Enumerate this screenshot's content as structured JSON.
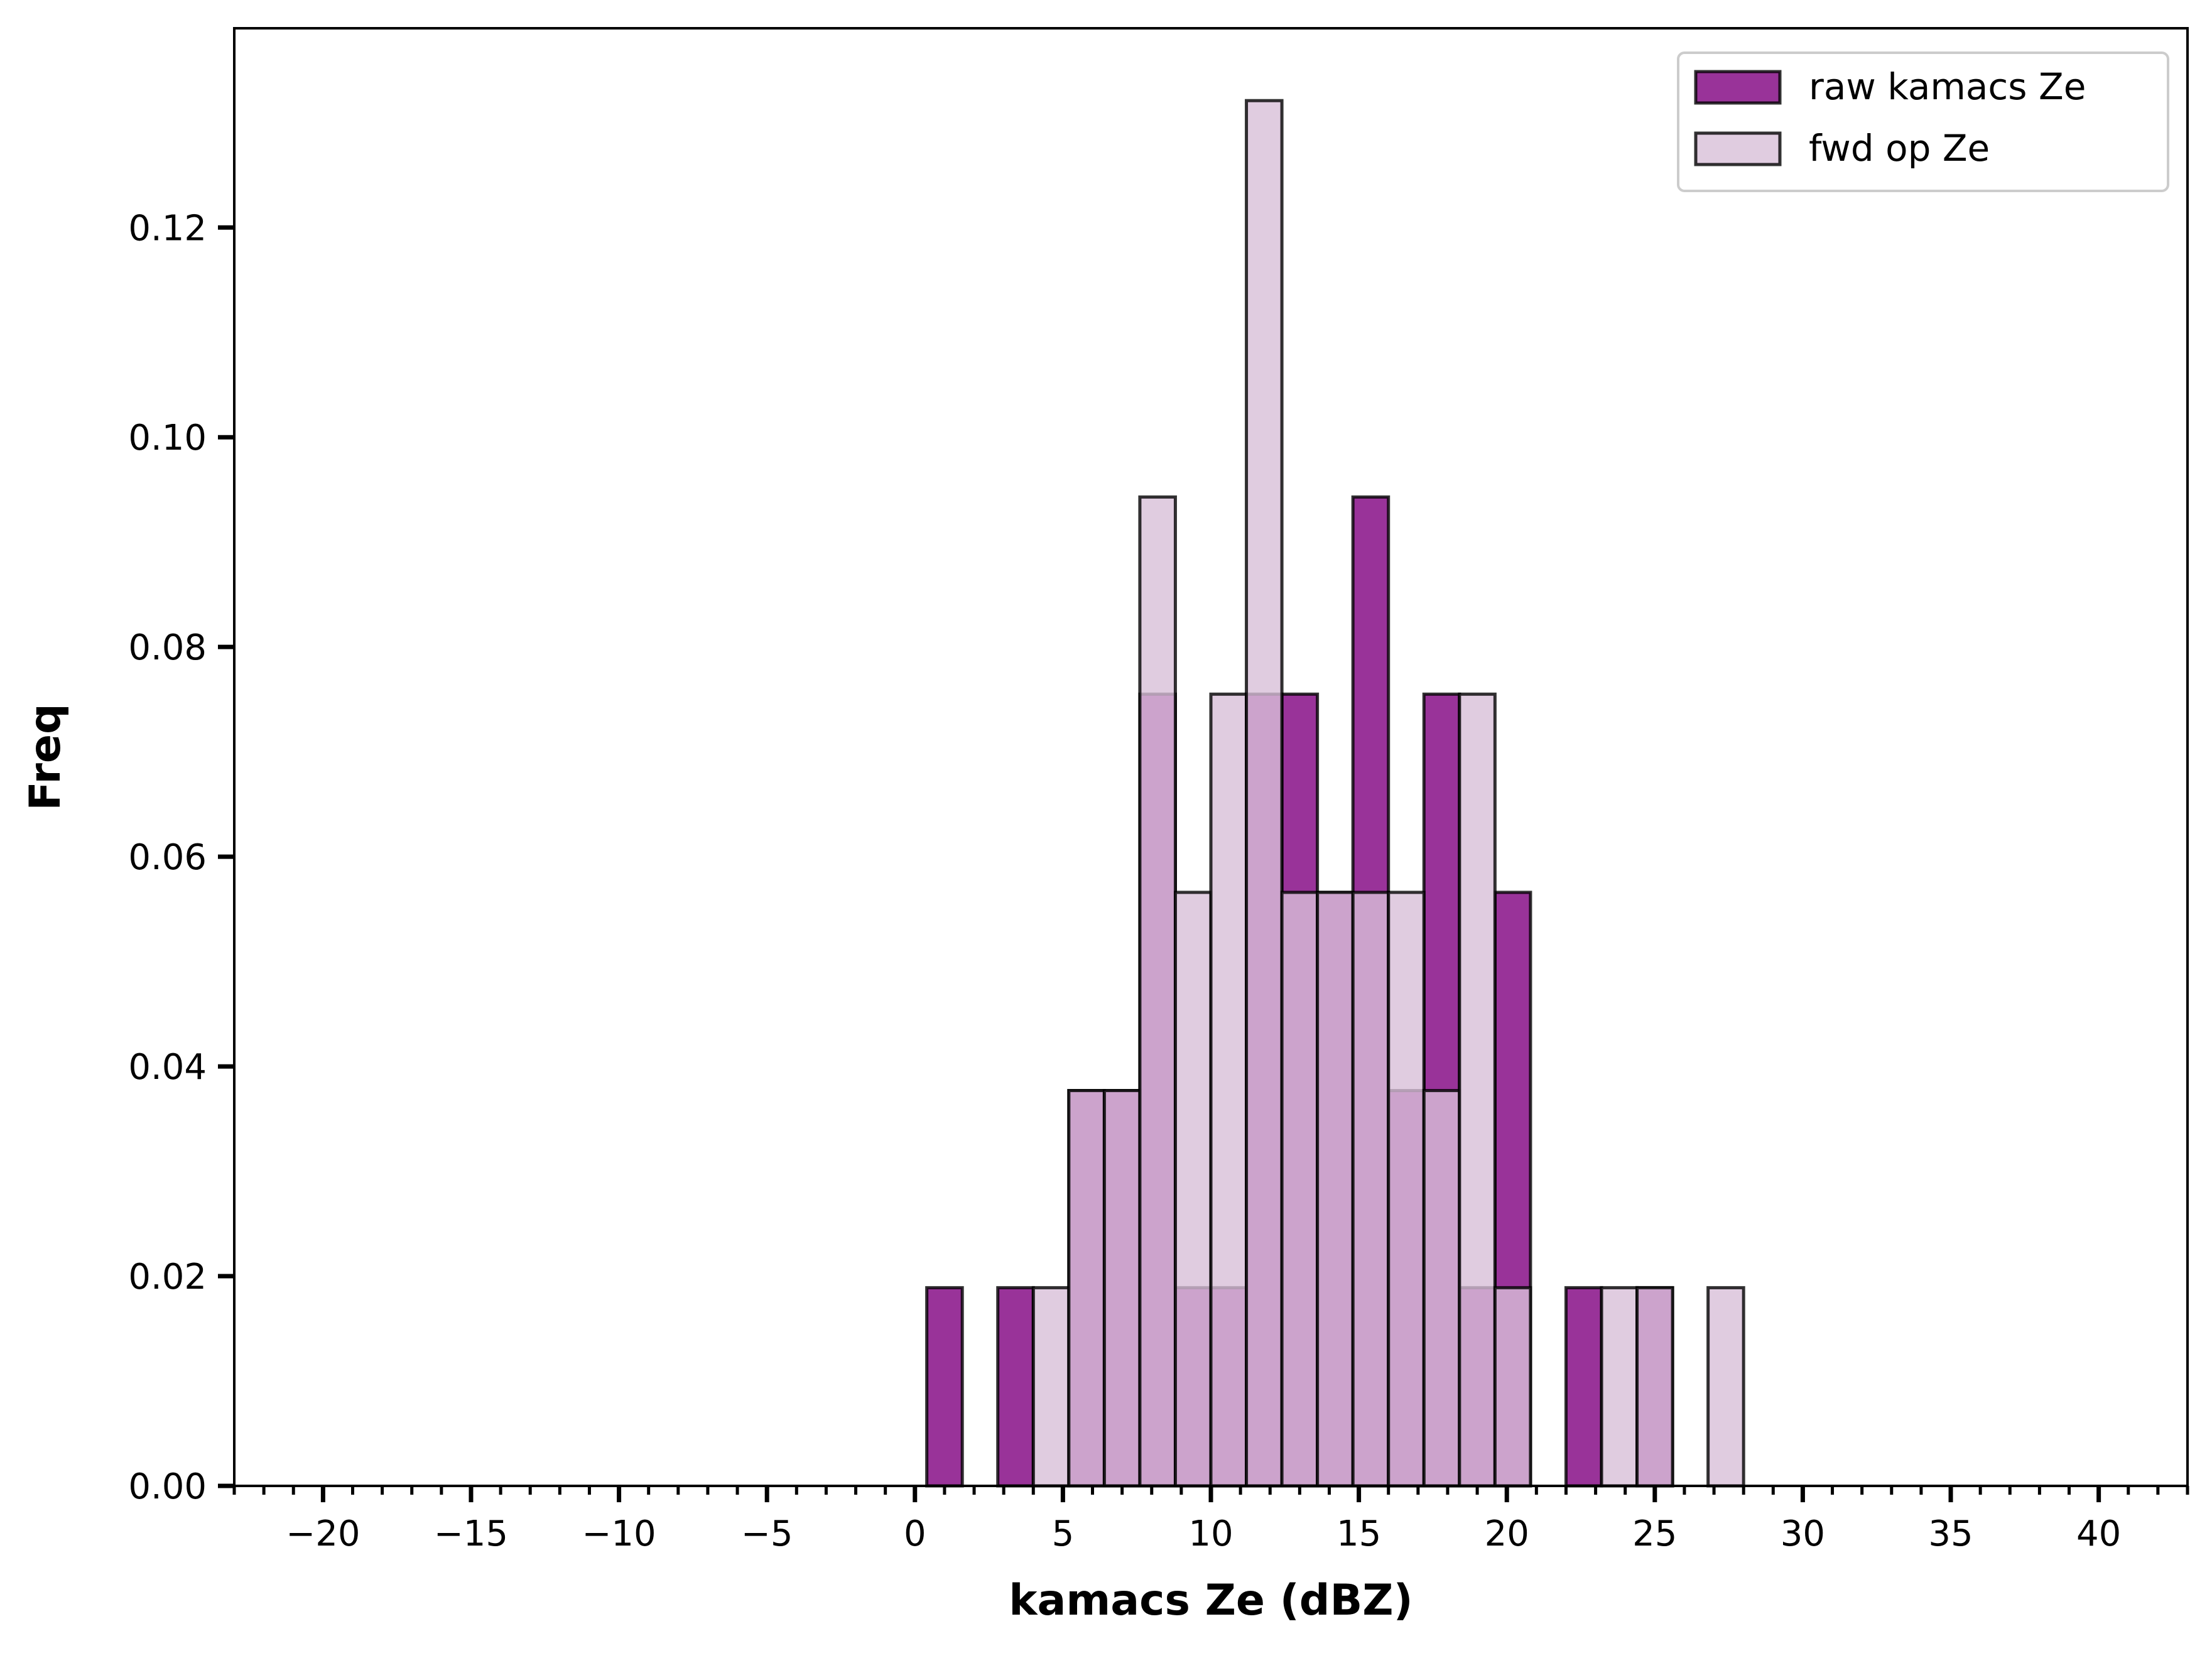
{
  "chart_data": {
    "type": "bar",
    "xlabel": "kamacs Ze (dBZ)",
    "ylabel": "Freq",
    "xlim": [
      -23,
      43
    ],
    "ylim": [
      0,
      0.139
    ],
    "x_ticks": [
      "−20",
      "−15",
      "−10",
      "−5",
      "0",
      "5",
      "10",
      "15",
      "20",
      "25",
      "30",
      "35",
      "40"
    ],
    "x_tick_values": [
      -20,
      -15,
      -10,
      -5,
      0,
      5,
      10,
      15,
      20,
      25,
      30,
      35,
      40
    ],
    "y_ticks": [
      "0.00",
      "0.02",
      "0.04",
      "0.06",
      "0.08",
      "0.10",
      "0.12"
    ],
    "y_tick_values": [
      0,
      0.02,
      0.04,
      0.06,
      0.08,
      0.1,
      0.12
    ],
    "bin_edges": [
      0.4,
      1.6,
      2.8,
      4.0,
      5.2,
      6.4,
      7.6,
      8.8,
      10.0,
      11.2,
      12.4,
      13.6,
      14.8,
      16.0,
      17.2,
      18.4,
      19.6,
      20.8,
      22.0,
      23.2,
      24.4,
      25.6,
      26.8,
      28.0,
      29.2,
      30.4
    ],
    "legend_position": "upper right",
    "grid": false,
    "series": [
      {
        "name": "raw kamacs Ze",
        "color": "#800080",
        "opacity": 0.8,
        "values": [
          0.0189,
          0,
          0.0189,
          0,
          0.0377,
          0.0377,
          0.0755,
          0.0189,
          0.0189,
          0.0755,
          0.0755,
          0.0566,
          0.0943,
          0.0377,
          0.0755,
          0.0189,
          0.0566,
          0,
          0.0189,
          0,
          0.0189,
          0,
          0,
          0,
          0
        ]
      },
      {
        "name": "fwd op Ze",
        "color": "#D8BFD8",
        "opacity": 0.8,
        "values": [
          0,
          0,
          0,
          0.0189,
          0.0377,
          0.0377,
          0.0943,
          0.0566,
          0.0755,
          0.1321,
          0.0566,
          0.0566,
          0.0566,
          0.0566,
          0.0377,
          0.0755,
          0.0189,
          0,
          0,
          0.0189,
          0.0189,
          0,
          0.0189,
          0,
          0
        ]
      }
    ]
  }
}
